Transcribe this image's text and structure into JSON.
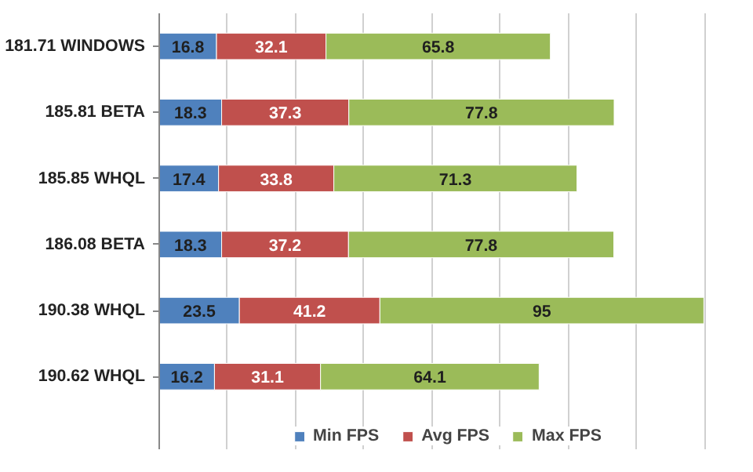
{
  "chart_data": {
    "type": "bar",
    "orientation": "horizontal",
    "stacked": true,
    "data_labels": true,
    "grid": "x",
    "legend": "bottom",
    "categories": [
      "181.71 WINDOWS",
      "185.81 BETA",
      "185.85 WHQL",
      "186.08 BETA",
      "190.38 WHQL",
      "190.62 WHQL"
    ],
    "series": [
      {
        "name": "Min FPS",
        "color": "#4f81bd",
        "values": [
          16.8,
          18.3,
          17.4,
          18.3,
          23.5,
          16.2
        ]
      },
      {
        "name": "Avg FPS",
        "color": "#c0504d",
        "values": [
          32.1,
          37.3,
          33.8,
          37.2,
          41.2,
          31.1
        ]
      },
      {
        "name": "Max FPS",
        "color": "#9bbb59",
        "values": [
          65.8,
          77.8,
          71.3,
          77.8,
          95,
          64.1
        ]
      }
    ]
  }
}
